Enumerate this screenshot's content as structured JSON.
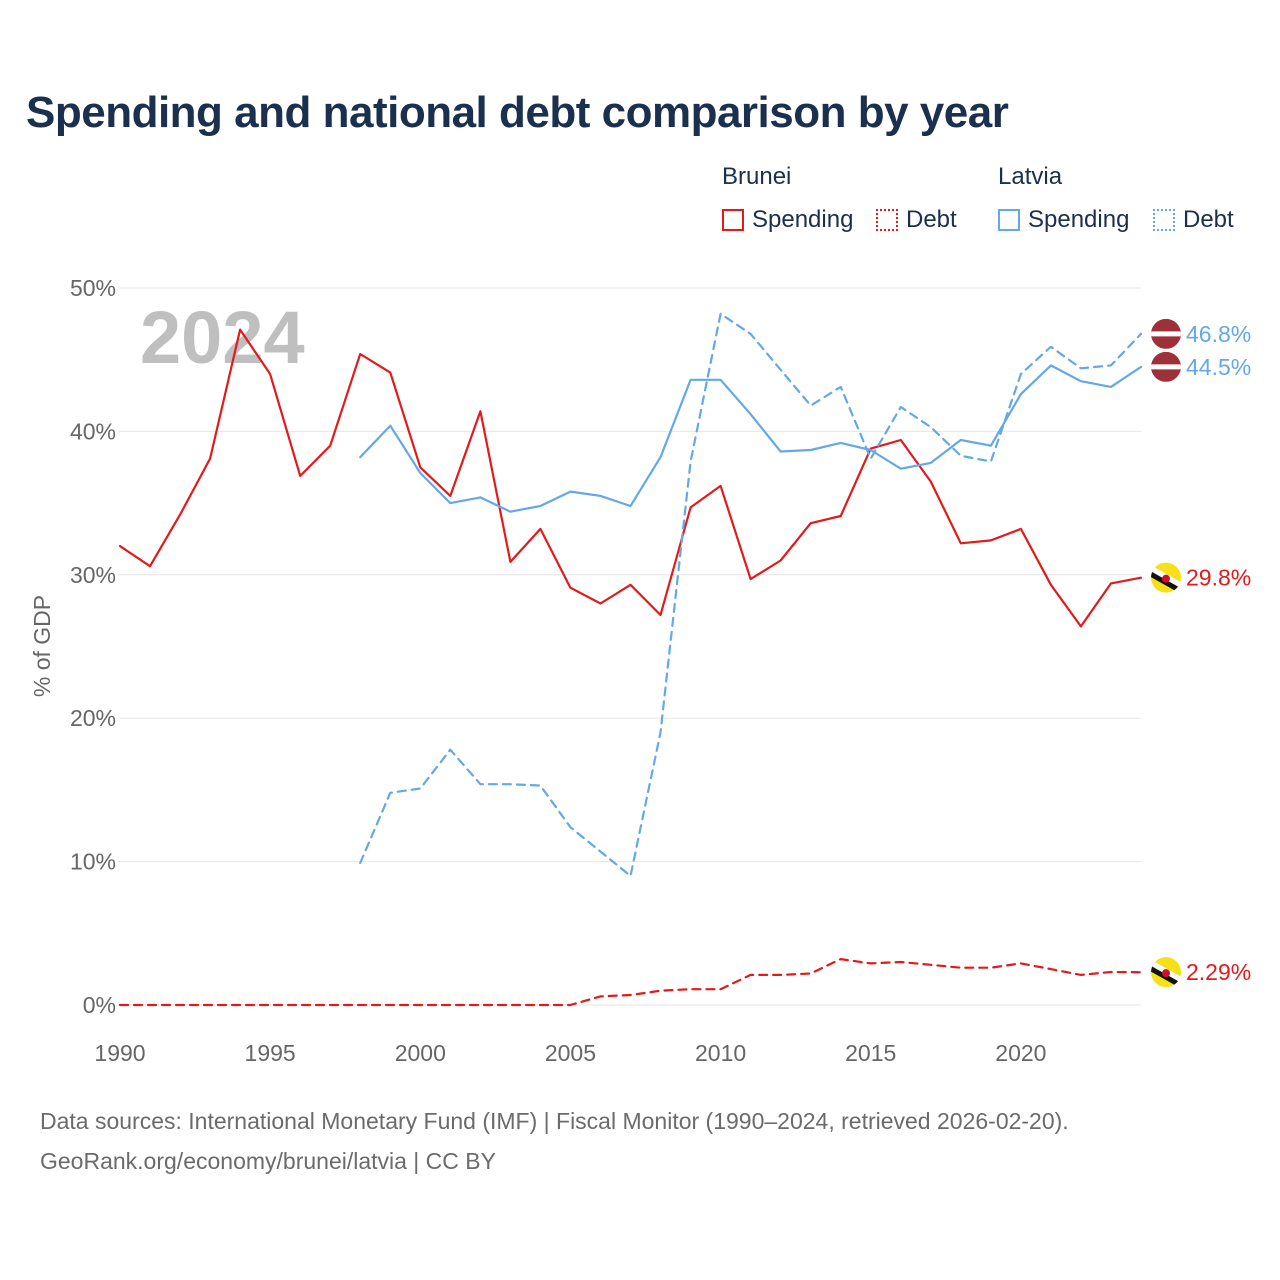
{
  "chart_data": {
    "type": "line",
    "title": "Spending and national debt comparison by year",
    "ylabel": "% of GDP",
    "xlabel": "",
    "year_label": "2024",
    "xlim": [
      1990,
      2024
    ],
    "ylim": [
      0,
      50
    ],
    "xticks": [
      1990,
      1995,
      2000,
      2005,
      2010,
      2015,
      2020
    ],
    "yticks": [
      0,
      10,
      20,
      30,
      40,
      50
    ],
    "ytick_labels": [
      "0%",
      "10%",
      "20%",
      "30%",
      "40%",
      "50%"
    ],
    "grid": true,
    "legend": {
      "position": "top-right",
      "groups": [
        {
          "name": "Brunei",
          "items": [
            "Spending",
            "Debt"
          ]
        },
        {
          "name": "Latvia",
          "items": [
            "Spending",
            "Debt"
          ]
        }
      ]
    },
    "series": [
      {
        "name": "Brunei Spending",
        "country": "Brunei",
        "metric": "Spending",
        "color": "#e31a1c",
        "dash": "solid",
        "end_label": "29.8%",
        "x": [
          1990,
          1991,
          1992,
          1993,
          1994,
          1995,
          1996,
          1997,
          1998,
          1999,
          2000,
          2001,
          2002,
          2003,
          2004,
          2005,
          2006,
          2007,
          2008,
          2009,
          2010,
          2011,
          2012,
          2013,
          2014,
          2015,
          2016,
          2017,
          2018,
          2019,
          2020,
          2021,
          2022,
          2023,
          2024
        ],
        "values": [
          32.0,
          30.6,
          34.2,
          38.1,
          47.1,
          44.0,
          36.9,
          39.0,
          45.4,
          44.1,
          37.5,
          35.5,
          41.4,
          30.9,
          33.2,
          29.1,
          28.0,
          29.3,
          27.2,
          34.7,
          36.2,
          29.7,
          31.0,
          33.6,
          34.1,
          38.8,
          39.4,
          36.5,
          32.2,
          32.4,
          33.2,
          29.3,
          26.4,
          29.4,
          29.8
        ]
      },
      {
        "name": "Brunei Debt",
        "country": "Brunei",
        "metric": "Debt",
        "color": "#e31a1c",
        "dash": "dashed",
        "end_label": "2.29%",
        "x": [
          1990,
          1991,
          1992,
          1993,
          1994,
          1995,
          1996,
          1997,
          1998,
          1999,
          2000,
          2001,
          2002,
          2003,
          2004,
          2005,
          2006,
          2007,
          2008,
          2009,
          2010,
          2011,
          2012,
          2013,
          2014,
          2015,
          2016,
          2017,
          2018,
          2019,
          2020,
          2021,
          2022,
          2023,
          2024
        ],
        "values": [
          0,
          0,
          0,
          0,
          0,
          0,
          0,
          0,
          0,
          0,
          0,
          0,
          0,
          0,
          0,
          0,
          0.6,
          0.7,
          1.0,
          1.1,
          1.1,
          2.1,
          2.1,
          2.2,
          3.2,
          2.9,
          3.0,
          2.8,
          2.6,
          2.6,
          2.9,
          2.5,
          2.1,
          2.3,
          2.29
        ]
      },
      {
        "name": "Latvia Spending",
        "country": "Latvia",
        "metric": "Spending",
        "color": "#64a8e6",
        "dash": "solid",
        "end_label": "44.5%",
        "x": [
          1998,
          1999,
          2000,
          2001,
          2002,
          2003,
          2004,
          2005,
          2006,
          2007,
          2008,
          2009,
          2010,
          2011,
          2012,
          2013,
          2014,
          2015,
          2016,
          2017,
          2018,
          2019,
          2020,
          2021,
          2022,
          2023,
          2024
        ],
        "values": [
          38.2,
          40.4,
          37.1,
          35.0,
          35.4,
          34.4,
          34.8,
          35.8,
          35.5,
          34.8,
          38.2,
          43.6,
          43.6,
          41.2,
          38.6,
          38.7,
          39.2,
          38.7,
          37.4,
          37.8,
          39.4,
          39.0,
          42.6,
          44.6,
          43.5,
          43.1,
          44.5
        ]
      },
      {
        "name": "Latvia Debt",
        "country": "Latvia",
        "metric": "Debt",
        "color": "#64a8e6",
        "dash": "dashed",
        "end_label": "46.8%",
        "x": [
          1998,
          1999,
          2000,
          2001,
          2002,
          2003,
          2004,
          2005,
          2006,
          2007,
          2008,
          2009,
          2010,
          2011,
          2012,
          2013,
          2014,
          2015,
          2016,
          2017,
          2018,
          2019,
          2020,
          2021,
          2022,
          2023,
          2024
        ],
        "values": [
          9.9,
          14.8,
          15.1,
          17.8,
          15.4,
          15.4,
          15.3,
          12.4,
          10.7,
          9.0,
          19.0,
          37.9,
          48.2,
          46.8,
          44.3,
          41.8,
          43.1,
          38.1,
          41.7,
          40.3,
          38.3,
          37.9,
          44.0,
          45.9,
          44.4,
          44.6,
          46.8
        ]
      }
    ]
  },
  "footer": {
    "line1": "Data sources: International Monetary Fund (IMF) | Fiscal Monitor (1990–2024, retrieved 2026-02-20).",
    "line2": "GeoRank.org/economy/brunei/latvia | CC BY"
  },
  "colors": {
    "title": "#1b2f4e",
    "brunei": "#e31a1c",
    "latvia": "#64a8e6",
    "grid": "#e6e6e6",
    "axis_text": "#666666",
    "year_watermark": "#bfbfbf",
    "flag_latvia": "#9e3039",
    "flag_brunei": "#f7e017"
  },
  "icons": {
    "latvia": "latvia-flag-icon",
    "brunei": "brunei-flag-icon"
  }
}
